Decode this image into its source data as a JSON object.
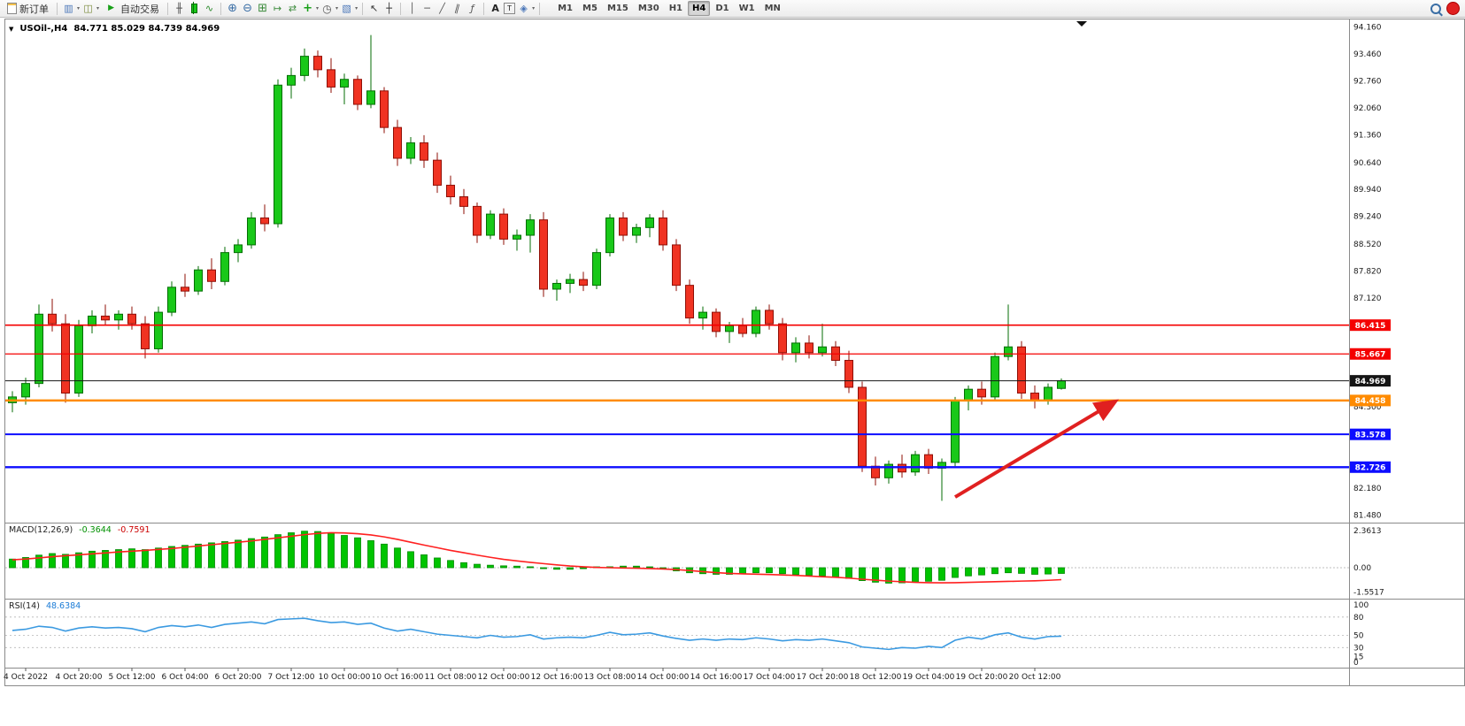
{
  "toolbar": {
    "new_order_label": "新订单",
    "auto_trading_label": "自动交易",
    "timeframes": [
      "M1",
      "M5",
      "M15",
      "M30",
      "H1",
      "H4",
      "D1",
      "W1",
      "MN"
    ],
    "active_timeframe": "H4",
    "icon_glyphs": {
      "play": "▶",
      "new_chart": "▥",
      "profiles": "◫",
      "bars": "╫",
      "line_chart": "∿",
      "zoom_in": "⊕",
      "zoom_out": "⊖",
      "tile": "⊞",
      "auto_scroll": "↦",
      "chart_shift": "⇄",
      "indicators": "+",
      "periods": "◷",
      "templates": "▧",
      "cursor": "↖",
      "crosshair": "┼",
      "vline": "│",
      "hline": "─",
      "trendline": "╱",
      "channel": "∥",
      "fibonacci": "ƒ",
      "text": "A",
      "label": "T",
      "objects": "◈",
      "caret": "▾",
      "one_click": "▼"
    }
  },
  "chart": {
    "symbol_label": "USOil-,H4",
    "ohlc": "84.771 85.029 84.739 84.969"
  },
  "chart_data": {
    "type": "candlestick",
    "symbol": "USOil",
    "timeframe": "H4",
    "title": "USOil-,H4 84.771 85.029 84.739 84.969",
    "price_axis": {
      "max": 94.31,
      "min": 81.4,
      "plain_labels": [
        "94.160",
        "93.460",
        "92.760",
        "92.060",
        "91.360",
        "90.640",
        "89.940",
        "89.240",
        "88.520",
        "87.820",
        "87.120",
        "84.300",
        "82.180",
        "81.480"
      ]
    },
    "x_labels": [
      "4 Oct 2022",
      "4 Oct 20:00",
      "5 Oct 12:00",
      "6 Oct 04:00",
      "6 Oct 20:00",
      "7 Oct 12:00",
      "10 Oct 00:00",
      "10 Oct 16:00",
      "11 Oct 08:00",
      "12 Oct 00:00",
      "12 Oct 16:00",
      "13 Oct 08:00",
      "14 Oct 00:00",
      "14 Oct 16:00",
      "17 Oct 04:00",
      "17 Oct 20:00",
      "18 Oct 12:00",
      "19 Oct 04:00",
      "19 Oct 20:00",
      "20 Oct 12:00"
    ],
    "candles": [
      [
        84.4,
        84.7,
        84.15,
        84.55
      ],
      [
        84.55,
        85.05,
        84.35,
        84.9
      ],
      [
        84.9,
        86.95,
        84.8,
        86.7
      ],
      [
        86.7,
        87.1,
        86.25,
        86.45
      ],
      [
        86.45,
        86.7,
        84.4,
        84.65
      ],
      [
        84.65,
        86.55,
        84.55,
        86.4
      ],
      [
        86.4,
        86.8,
        86.2,
        86.65
      ],
      [
        86.65,
        86.95,
        86.4,
        86.55
      ],
      [
        86.55,
        86.8,
        86.3,
        86.7
      ],
      [
        86.7,
        86.9,
        86.3,
        86.45
      ],
      [
        86.45,
        86.65,
        85.55,
        85.8
      ],
      [
        85.8,
        86.9,
        85.7,
        86.75
      ],
      [
        86.75,
        87.55,
        86.65,
        87.4
      ],
      [
        87.4,
        87.75,
        87.15,
        87.3
      ],
      [
        87.3,
        87.95,
        87.2,
        87.85
      ],
      [
        87.85,
        88.15,
        87.35,
        87.55
      ],
      [
        87.55,
        88.45,
        87.45,
        88.3
      ],
      [
        88.3,
        88.65,
        88.05,
        88.5
      ],
      [
        88.5,
        89.35,
        88.4,
        89.2
      ],
      [
        89.2,
        89.55,
        88.85,
        89.05
      ],
      [
        89.05,
        92.8,
        88.95,
        92.65
      ],
      [
        92.65,
        93.1,
        92.3,
        92.9
      ],
      [
        92.9,
        93.6,
        92.75,
        93.4
      ],
      [
        93.4,
        93.55,
        92.85,
        93.05
      ],
      [
        93.05,
        93.35,
        92.45,
        92.6
      ],
      [
        92.6,
        92.95,
        92.15,
        92.8
      ],
      [
        92.8,
        92.9,
        92.0,
        92.15
      ],
      [
        92.15,
        93.95,
        92.05,
        92.5
      ],
      [
        92.5,
        92.6,
        91.4,
        91.55
      ],
      [
        91.55,
        91.75,
        90.55,
        90.75
      ],
      [
        90.75,
        91.3,
        90.6,
        91.15
      ],
      [
        91.15,
        91.35,
        90.5,
        90.7
      ],
      [
        90.7,
        90.9,
        89.85,
        90.05
      ],
      [
        90.05,
        90.3,
        89.55,
        89.75
      ],
      [
        89.75,
        89.95,
        89.3,
        89.5
      ],
      [
        89.5,
        89.6,
        88.55,
        88.75
      ],
      [
        88.75,
        89.4,
        88.65,
        89.3
      ],
      [
        89.3,
        89.45,
        88.5,
        88.65
      ],
      [
        88.65,
        88.9,
        88.35,
        88.75
      ],
      [
        88.75,
        89.3,
        88.3,
        89.15
      ],
      [
        89.15,
        89.35,
        87.15,
        87.35
      ],
      [
        87.35,
        87.6,
        87.05,
        87.5
      ],
      [
        87.5,
        87.75,
        87.25,
        87.6
      ],
      [
        87.6,
        87.8,
        87.3,
        87.45
      ],
      [
        87.45,
        88.4,
        87.35,
        88.3
      ],
      [
        88.3,
        89.3,
        88.2,
        89.2
      ],
      [
        89.2,
        89.35,
        88.6,
        88.75
      ],
      [
        88.75,
        89.05,
        88.55,
        88.95
      ],
      [
        88.95,
        89.3,
        88.7,
        89.2
      ],
      [
        89.2,
        89.4,
        88.35,
        88.5
      ],
      [
        88.5,
        88.65,
        87.3,
        87.45
      ],
      [
        87.45,
        87.6,
        86.45,
        86.6
      ],
      [
        86.6,
        86.9,
        86.3,
        86.75
      ],
      [
        86.75,
        86.85,
        86.1,
        86.25
      ],
      [
        86.25,
        86.5,
        85.95,
        86.4
      ],
      [
        86.4,
        86.6,
        86.1,
        86.2
      ],
      [
        86.2,
        86.9,
        86.1,
        86.8
      ],
      [
        86.8,
        86.95,
        86.3,
        86.45
      ],
      [
        86.45,
        86.6,
        85.5,
        85.7
      ],
      [
        85.7,
        86.1,
        85.45,
        85.95
      ],
      [
        85.95,
        86.15,
        85.55,
        85.7
      ],
      [
        85.7,
        86.45,
        85.6,
        85.85
      ],
      [
        85.85,
        86.0,
        85.35,
        85.5
      ],
      [
        85.5,
        85.75,
        84.65,
        84.8
      ],
      [
        84.8,
        84.95,
        82.6,
        82.75
      ],
      [
        82.75,
        83.0,
        82.25,
        82.45
      ],
      [
        82.45,
        82.9,
        82.3,
        82.8
      ],
      [
        82.8,
        83.05,
        82.45,
        82.6
      ],
      [
        82.6,
        83.15,
        82.5,
        83.05
      ],
      [
        83.05,
        83.2,
        82.55,
        82.7
      ],
      [
        82.7,
        82.95,
        81.85,
        82.85
      ],
      [
        82.85,
        84.55,
        82.75,
        84.45
      ],
      [
        84.45,
        84.85,
        84.2,
        84.75
      ],
      [
        84.75,
        84.95,
        84.35,
        84.55
      ],
      [
        84.55,
        85.7,
        84.45,
        85.6
      ],
      [
        85.6,
        86.95,
        85.5,
        85.85
      ],
      [
        85.85,
        86.0,
        84.5,
        84.65
      ],
      [
        84.65,
        84.85,
        84.25,
        84.45
      ],
      [
        84.45,
        84.9,
        84.35,
        84.8
      ],
      [
        84.771,
        85.029,
        84.739,
        84.969
      ]
    ],
    "levels": [
      {
        "label": "86.415",
        "price": 86.415,
        "color": "#f40000",
        "width": 1.6
      },
      {
        "label": "85.667",
        "price": 85.667,
        "color": "#f40000",
        "width": 1.3
      },
      {
        "label": "84.969",
        "price": 84.969,
        "color": "#151515",
        "width": 1.0
      },
      {
        "label": "84.458",
        "price": 84.458,
        "color": "#ff8b00",
        "width": 2.6
      },
      {
        "label": "83.578",
        "price": 83.578,
        "color": "#0d0dff",
        "width": 2.0
      },
      {
        "label": "82.726",
        "price": 82.726,
        "color": "#0d0dff",
        "width": 2.4
      }
    ],
    "arrow": {
      "x1_index": 71,
      "price1": 81.95,
      "x2_index": 83,
      "price2": 84.42,
      "color": "#e02020"
    },
    "macd": {
      "name": "MACD(12,26,9)",
      "value_main": "-0.3644",
      "value_signal": "-0.7591",
      "axis_labels": [
        "2.3613",
        "0.00",
        "-1.5517"
      ],
      "histogram": [
        0.55,
        0.65,
        0.8,
        0.9,
        0.85,
        0.95,
        1.05,
        1.1,
        1.15,
        1.2,
        1.15,
        1.25,
        1.35,
        1.42,
        1.5,
        1.58,
        1.66,
        1.75,
        1.85,
        1.95,
        2.1,
        2.22,
        2.32,
        2.3,
        2.2,
        2.05,
        1.9,
        1.72,
        1.5,
        1.25,
        1.02,
        0.82,
        0.62,
        0.46,
        0.32,
        0.22,
        0.16,
        0.12,
        0.1,
        0.06,
        -0.06,
        -0.1,
        -0.1,
        -0.06,
        0.0,
        0.06,
        0.1,
        0.1,
        0.05,
        -0.06,
        -0.2,
        -0.32,
        -0.38,
        -0.42,
        -0.42,
        -0.38,
        -0.32,
        -0.32,
        -0.38,
        -0.44,
        -0.48,
        -0.52,
        -0.58,
        -0.68,
        -0.82,
        -0.92,
        -0.98,
        -0.96,
        -0.92,
        -0.86,
        -0.8,
        -0.62,
        -0.52,
        -0.46,
        -0.38,
        -0.32,
        -0.36,
        -0.42,
        -0.4,
        -0.3644
      ],
      "signal": [
        0.5,
        0.55,
        0.62,
        0.7,
        0.76,
        0.82,
        0.88,
        0.94,
        1.0,
        1.05,
        1.1,
        1.16,
        1.22,
        1.3,
        1.38,
        1.46,
        1.54,
        1.62,
        1.7,
        1.8,
        1.9,
        2.0,
        2.1,
        2.18,
        2.22,
        2.21,
        2.16,
        2.08,
        1.96,
        1.8,
        1.62,
        1.44,
        1.27,
        1.1,
        0.95,
        0.8,
        0.66,
        0.53,
        0.43,
        0.34,
        0.26,
        0.18,
        0.11,
        0.06,
        0.02,
        0.0,
        -0.02,
        -0.03,
        -0.05,
        -0.08,
        -0.12,
        -0.18,
        -0.25,
        -0.31,
        -0.36,
        -0.39,
        -0.41,
        -0.43,
        -0.46,
        -0.49,
        -0.53,
        -0.57,
        -0.61,
        -0.66,
        -0.73,
        -0.79,
        -0.85,
        -0.89,
        -0.93,
        -0.95,
        -0.96,
        -0.95,
        -0.93,
        -0.91,
        -0.89,
        -0.87,
        -0.85,
        -0.83,
        -0.8,
        -0.7591
      ]
    },
    "rsi": {
      "name": "RSI(14)",
      "value": "48.6384",
      "axis_labels": [
        100,
        80,
        50,
        30,
        15,
        0
      ],
      "levels": [
        80,
        50,
        30
      ],
      "values": [
        58,
        60,
        65,
        63,
        57,
        62,
        64,
        62,
        63,
        61,
        56,
        63,
        66,
        64,
        67,
        63,
        68,
        70,
        72,
        69,
        76,
        77,
        78,
        74,
        71,
        72,
        68,
        70,
        62,
        57,
        60,
        56,
        52,
        50,
        48,
        46,
        50,
        47,
        48,
        51,
        44,
        46,
        47,
        46,
        50,
        55,
        51,
        52,
        54,
        49,
        45,
        42,
        44,
        42,
        44,
        43,
        46,
        44,
        41,
        43,
        42,
        44,
        41,
        38,
        31,
        29,
        27,
        30,
        29,
        32,
        30,
        42,
        47,
        44,
        51,
        54,
        47,
        44,
        48,
        48.64
      ]
    },
    "colors": {
      "up": "#19c819",
      "up_border": "#046e04",
      "down": "#f03322",
      "down_border": "#8f0f06",
      "signal_line": "#ff2020",
      "macd_bar": "#00c400",
      "rsi_line": "#3b9ae1"
    }
  }
}
